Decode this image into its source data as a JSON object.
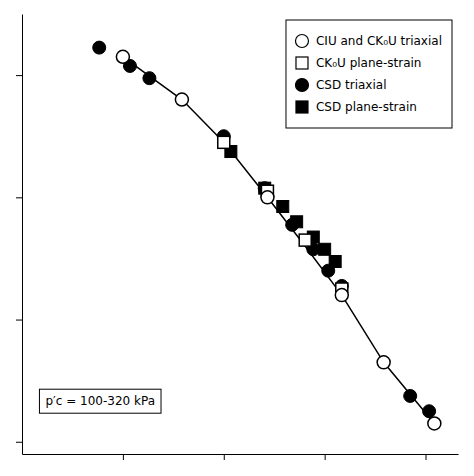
{
  "chart_data": {
    "type": "scatter",
    "annotation": "p′c = 100-320 kPa",
    "log": "x",
    "grid": false,
    "legend": "top-right",
    "tick_labels": false,
    "xlim": [
      0.5,
      10.0
    ],
    "ylim": [
      0.28,
      1.0
    ],
    "xticks": [
      1.0,
      2.0,
      4.0,
      8.0
    ],
    "yticks": [
      0.3,
      0.5,
      0.7,
      0.9
    ],
    "series": [
      {
        "type": "line",
        "color": "#000000",
        "line_style": "solid",
        "x": [
          1.0,
          1.5,
          2.0,
          2.7,
          3.5,
          4.5,
          6.0,
          8.5
        ],
        "values": [
          0.93,
          0.86,
          0.79,
          0.7,
          0.62,
          0.54,
          0.43,
          0.33
        ]
      },
      {
        "type": "scatter",
        "name": "CIU and CK₀U triaxial",
        "marker": "circle",
        "color": "#ffffff",
        "x": [
          1.0,
          1.5,
          2.7,
          4.5,
          6.0,
          8.5
        ],
        "values": [
          0.93,
          0.86,
          0.7,
          0.54,
          0.43,
          0.33
        ]
      },
      {
        "type": "scatter",
        "name": "CK₀U plane-strain",
        "marker": "square",
        "color": "#ffffff",
        "x": [
          2.0,
          2.7,
          3.5,
          4.5
        ],
        "values": [
          0.79,
          0.71,
          0.63,
          0.55
        ]
      },
      {
        "type": "scatter",
        "name": "CSD triaxial",
        "marker": "circle",
        "color": "#000000",
        "x": [
          0.85,
          1.05,
          1.2,
          2.0,
          2.65,
          3.2,
          3.7,
          4.1,
          4.5,
          7.2,
          8.2
        ],
        "values": [
          0.945,
          0.915,
          0.895,
          0.8,
          0.715,
          0.655,
          0.615,
          0.58,
          0.555,
          0.375,
          0.35
        ]
      },
      {
        "type": "scatter",
        "name": "CSD plane-strain",
        "marker": "square",
        "color": "#000000",
        "x": [
          2.1,
          2.65,
          3.0,
          3.3,
          3.7,
          4.0,
          4.3
        ],
        "values": [
          0.775,
          0.715,
          0.685,
          0.66,
          0.635,
          0.615,
          0.595
        ]
      }
    ]
  }
}
